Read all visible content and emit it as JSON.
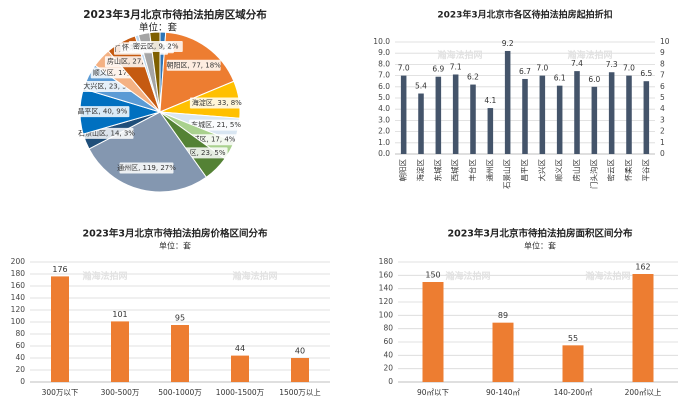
{
  "chart_data": [
    {
      "type": "pie",
      "title": "2023年3月北京市待拍法拍房区域分布",
      "subtitle": "单位：套",
      "slices": [
        {
          "label": "平谷区, 5, 1%",
          "value": 5,
          "color": "#2e75b6"
        },
        {
          "label": "朝阳区, 77, 18%",
          "value": 77,
          "color": "#ed7d31"
        },
        {
          "label": "海淀区, 33, 8%",
          "value": 33,
          "color": "#ffc000"
        },
        {
          "label": "东城区, 21, 5%",
          "value": 21,
          "color": "#d9e6f2"
        },
        {
          "label": "西城区, 17, 4%",
          "value": 17,
          "color": "#a9d18e"
        },
        {
          "label": "丰台区, 23, 5%",
          "value": 23,
          "color": "#548235"
        },
        {
          "label": "通州区, 119, 27%",
          "value": 119,
          "color": "#8497b0"
        },
        {
          "label": "石景山区, 14, 3%",
          "value": 14,
          "color": "#1f4e79"
        },
        {
          "label": "昌平区, 40, 9%",
          "value": 40,
          "color": "#0070c0"
        },
        {
          "label": "大兴区, 23, 5%",
          "value": 23,
          "color": "#5b9bd5"
        },
        {
          "label": "顺义区, 17, 4%",
          "value": 17,
          "color": "#f4b183"
        },
        {
          "label": "房山区, 27, 6%",
          "value": 27,
          "color": "#c55a11"
        },
        {
          "label": "门头沟区, 3, 1%",
          "value": 3,
          "color": "#bdd7ee"
        },
        {
          "label": "怀柔区, 10, 2%",
          "value": 10,
          "color": "#a5a5a5"
        },
        {
          "label": "密云区, 9, 2%",
          "value": 9,
          "color": "#7f6000"
        }
      ]
    },
    {
      "type": "bar",
      "title": "2023年3月北京市各区待拍法拍房起拍折扣",
      "categories": [
        "朝阳区",
        "海淀区",
        "东城区",
        "西城区",
        "丰台区",
        "通州区",
        "石景山区",
        "昌平区",
        "大兴区",
        "顺义区",
        "房山区",
        "门头沟区",
        "密云区",
        "怀柔区",
        "平谷区"
      ],
      "values": [
        7.0,
        5.4,
        6.9,
        7.1,
        6.2,
        4.1,
        9.2,
        6.7,
        7.0,
        6.1,
        7.4,
        6.0,
        7.3,
        7.0,
        6.5
      ],
      "value_labels": [
        "7.0",
        "5.4",
        "6.9",
        "7.1",
        "6.2",
        "4.1",
        "9.2",
        "6.7",
        "7.0",
        "6.1",
        "7.4",
        "6.0",
        "7.3",
        "7.0",
        "6.5"
      ],
      "ylim": [
        0,
        10
      ],
      "left_ticks": [
        "0.0",
        "1.0",
        "2.0",
        "3.0",
        "4.0",
        "5.0",
        "6.0",
        "7.0",
        "8.0",
        "9.0",
        "10.0"
      ],
      "right_ticks": [
        "0",
        "1",
        "2",
        "3",
        "4",
        "5",
        "6",
        "7",
        "8",
        "9",
        "10"
      ],
      "bar_color": "#44546a",
      "grid": true,
      "watermark": "瀚海法拍网"
    },
    {
      "type": "bar",
      "title": "2023年3月北京市待拍法拍房价格区间分布",
      "subtitle": "单位：套",
      "categories": [
        "300万以下",
        "300-500万",
        "500-1000万",
        "1000-1500万",
        "1500万以上"
      ],
      "values": [
        176,
        101,
        95,
        44,
        40
      ],
      "value_labels": [
        "176",
        "101",
        "95",
        "44",
        "40"
      ],
      "ylim": [
        0,
        200
      ],
      "ticks": [
        "0",
        "20",
        "40",
        "60",
        "80",
        "100",
        "120",
        "140",
        "160",
        "180",
        "200"
      ],
      "bar_color": "#ed7d31",
      "grid": true,
      "watermark": "瀚海法拍网"
    },
    {
      "type": "bar",
      "title": "2023年3月北京市待拍法拍房面积区间分布",
      "subtitle": "单位：套",
      "categories": [
        "90㎡以下",
        "90-140㎡",
        "140-200㎡",
        "200㎡以上"
      ],
      "values": [
        150,
        89,
        55,
        162
      ],
      "value_labels": [
        "150",
        "89",
        "55",
        "162"
      ],
      "ylim": [
        0,
        180
      ],
      "ticks": [
        "0",
        "20",
        "40",
        "60",
        "80",
        "100",
        "120",
        "140",
        "160",
        "180"
      ],
      "bar_color": "#ed7d31",
      "grid": true,
      "watermark": "瀚海法拍网"
    }
  ]
}
